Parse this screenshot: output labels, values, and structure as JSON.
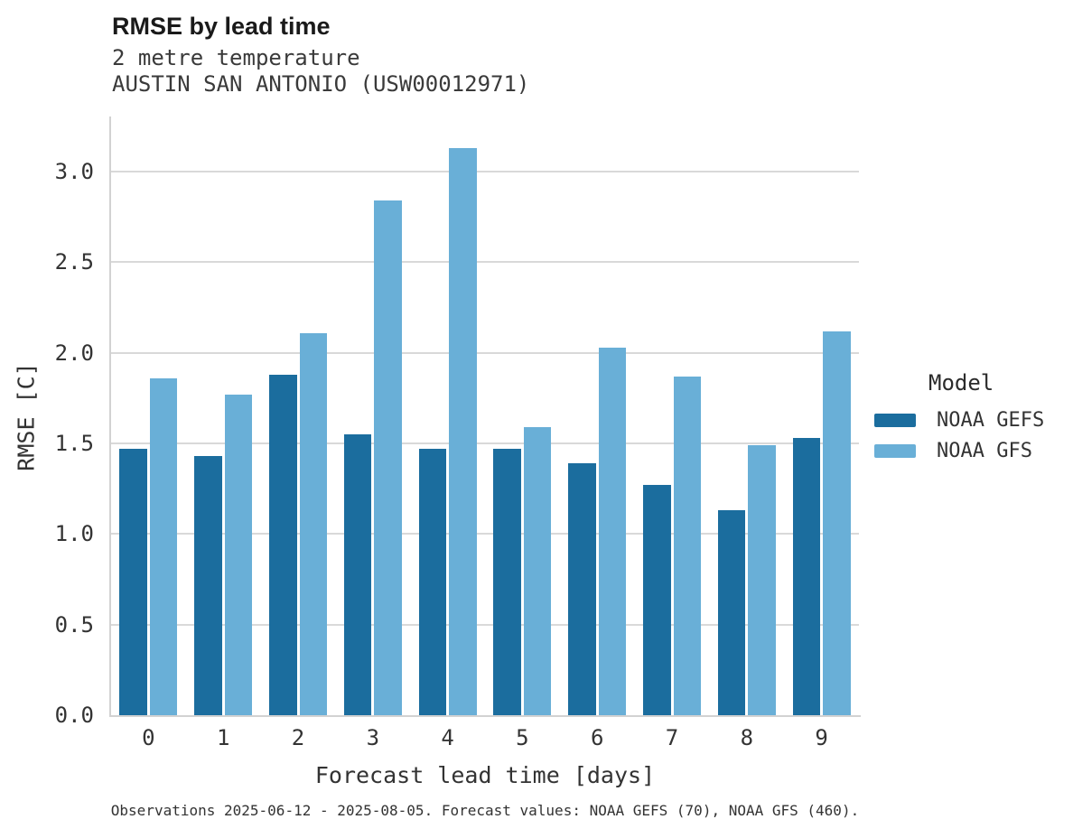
{
  "chart_data": {
    "type": "bar",
    "title": "RMSE by lead time",
    "subtitle_lines": [
      "2 metre temperature",
      "AUSTIN SAN ANTONIO (USW00012971)"
    ],
    "xlabel": "Forecast lead time [days]",
    "ylabel": "RMSE [C]",
    "categories": [
      "0",
      "1",
      "2",
      "3",
      "4",
      "5",
      "6",
      "7",
      "8",
      "9"
    ],
    "series": [
      {
        "name": "NOAA GEFS",
        "color": "#1b6d9e",
        "values": [
          1.47,
          1.43,
          1.88,
          1.55,
          1.47,
          1.47,
          1.39,
          1.27,
          1.13,
          1.53
        ]
      },
      {
        "name": "NOAA GFS",
        "color": "#69afd7",
        "values": [
          1.86,
          1.77,
          2.11,
          2.84,
          3.13,
          1.59,
          2.03,
          1.87,
          1.49,
          2.12
        ]
      }
    ],
    "ylim": [
      0,
      3.3
    ],
    "yticks": [
      0.0,
      0.5,
      1.0,
      1.5,
      2.0,
      2.5,
      3.0
    ],
    "grid": true,
    "legend_title": "Model",
    "legend_position": "right",
    "caption": "Observations 2025-06-12 - 2025-08-05. Forecast values: NOAA GEFS (70), NOAA GFS (460)."
  },
  "colors": {
    "gefs": "#1b6d9e",
    "gfs": "#69afd7",
    "gridline": "#d9d9d9",
    "spine": "#d2d2d2",
    "text": "#333333",
    "title_text": "#1a1a1a",
    "background": "#ffffff"
  }
}
